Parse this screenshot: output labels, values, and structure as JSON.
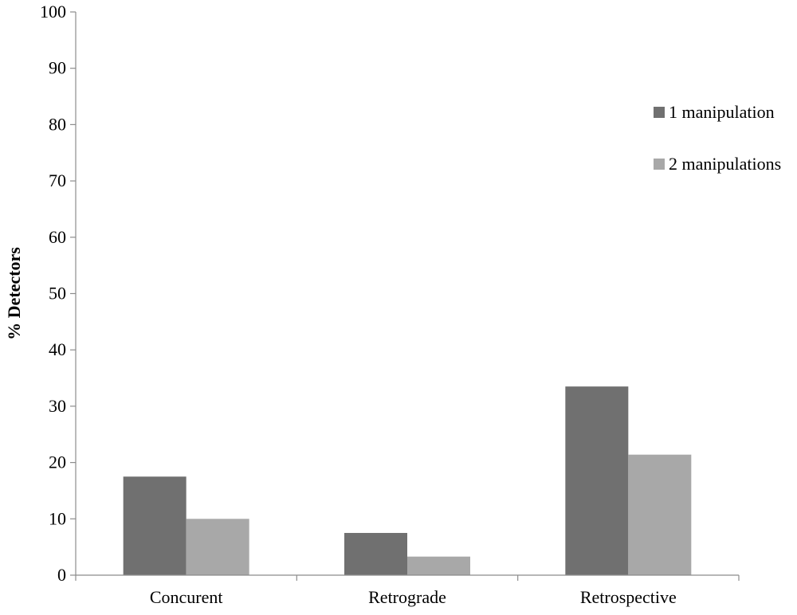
{
  "chart_data": {
    "type": "bar",
    "categories": [
      "Concurent",
      "Retrograde",
      "Retrospective"
    ],
    "series": [
      {
        "name": "1 manipulation",
        "values": [
          17.5,
          7.5,
          33.5
        ],
        "color": "#707070"
      },
      {
        "name": "2 manipulations",
        "values": [
          10,
          3.3,
          21.4
        ],
        "color": "#a8a8a8"
      }
    ],
    "title": "",
    "xlabel": "",
    "ylabel": "% Detectors",
    "ylim": [
      0,
      100
    ],
    "yticks": [
      "0",
      "10",
      "20",
      "30",
      "40",
      "50",
      "60",
      "70",
      "80",
      "90",
      "100"
    ],
    "grid": false,
    "legend_position": "right"
  }
}
